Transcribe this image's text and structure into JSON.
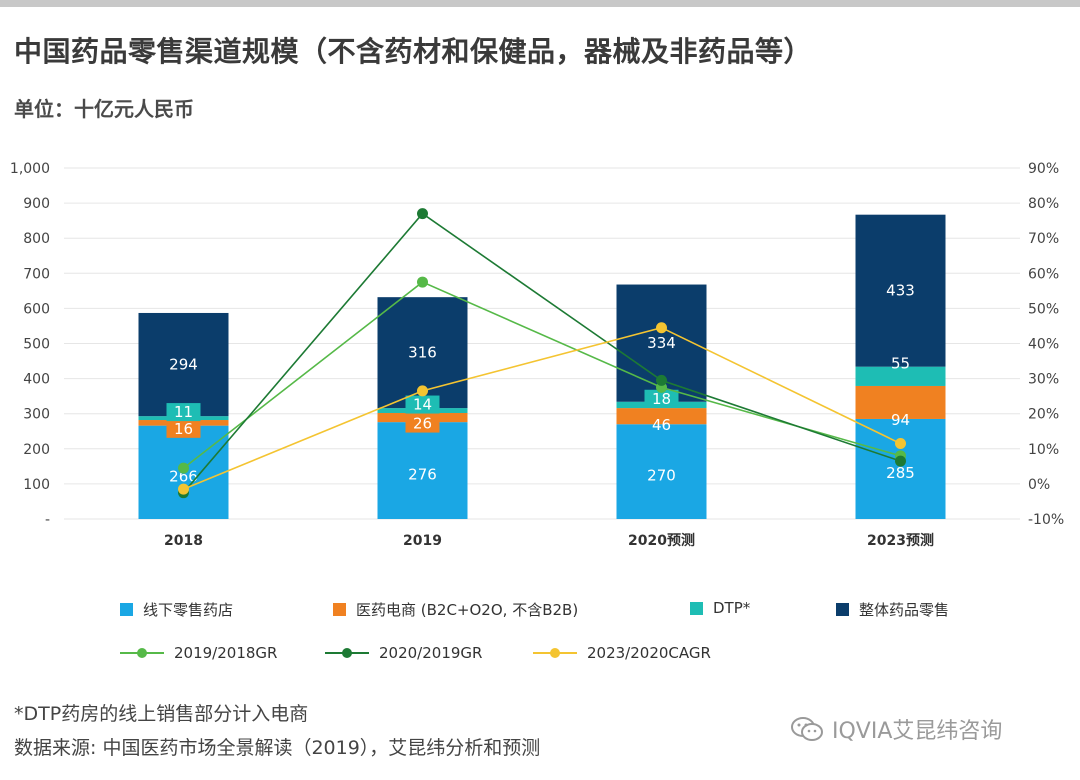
{
  "title": "中国药品零售渠道规模（不含药材和保健品，器械及非药品等）",
  "unit": "单位：十亿元人民币",
  "footnote": "*DTP药房的线上销售部分计入电商",
  "source": "数据来源: 中国医药市场全景解读（2019），艾昆纬分析和预测",
  "watermark": "IQVIA艾昆纬咨询",
  "colors": {
    "offline": "#1aa7e4",
    "ecommerce": "#f08121",
    "dtp": "#1ebdb4",
    "total": "#0b3d6b",
    "gr1918": "#56b948",
    "gr2019": "#1d7a34",
    "cagr": "#f4c431"
  },
  "legend": {
    "offline": "线下零售药店",
    "ecommerce": "医药电商 (B2C+O2O, 不含B2B)",
    "dtp": "DTP*",
    "total": "整体药品零售",
    "gr1918": "2019/2018GR",
    "gr2019": "2020/2019GR",
    "cagr": "2023/2020CAGR"
  },
  "chart_data": {
    "type": "bar",
    "stacked": true,
    "categories": [
      "2018",
      "2019",
      "2020预测",
      "2023预测"
    ],
    "series": [
      {
        "name": "线下零售药店",
        "values": [
          266,
          276,
          270,
          285
        ]
      },
      {
        "name": "医药电商 (B2C+O2O, 不含B2B)",
        "values": [
          16,
          26,
          46,
          94
        ]
      },
      {
        "name": "DTP*",
        "values": [
          11,
          14,
          18,
          55
        ]
      },
      {
        "name": "整体药品零售",
        "values": [
          294,
          316,
          334,
          433
        ]
      }
    ],
    "line_series": [
      {
        "name": "2019/2018GR",
        "x": [
          0.5,
          1.5,
          2.5,
          3.5
        ],
        "values": [
          4.5,
          57.5,
          27.5,
          8
        ]
      },
      {
        "name": "2020/2019GR",
        "x": [
          0.5,
          1.5,
          2.5,
          3.5
        ],
        "values": [
          -2.5,
          77,
          29.5,
          6.5
        ]
      },
      {
        "name": "2023/2020CAGR",
        "x": [
          0.5,
          1.5,
          2.5,
          3.5
        ],
        "values": [
          -1.5,
          26.5,
          44.5,
          11.5
        ]
      }
    ],
    "left_axis": {
      "ylim": [
        0,
        1000
      ],
      "ticks": [
        "-",
        "100",
        "200",
        "300",
        "400",
        "500",
        "600",
        "700",
        "800",
        "900",
        "1,000"
      ]
    },
    "right_axis": {
      "ylim": [
        -10,
        90
      ],
      "ticks": [
        "-10%",
        "0%",
        "10%",
        "20%",
        "30%",
        "40%",
        "50%",
        "60%",
        "70%",
        "80%",
        "90%"
      ]
    },
    "legend_position": "bottom"
  }
}
